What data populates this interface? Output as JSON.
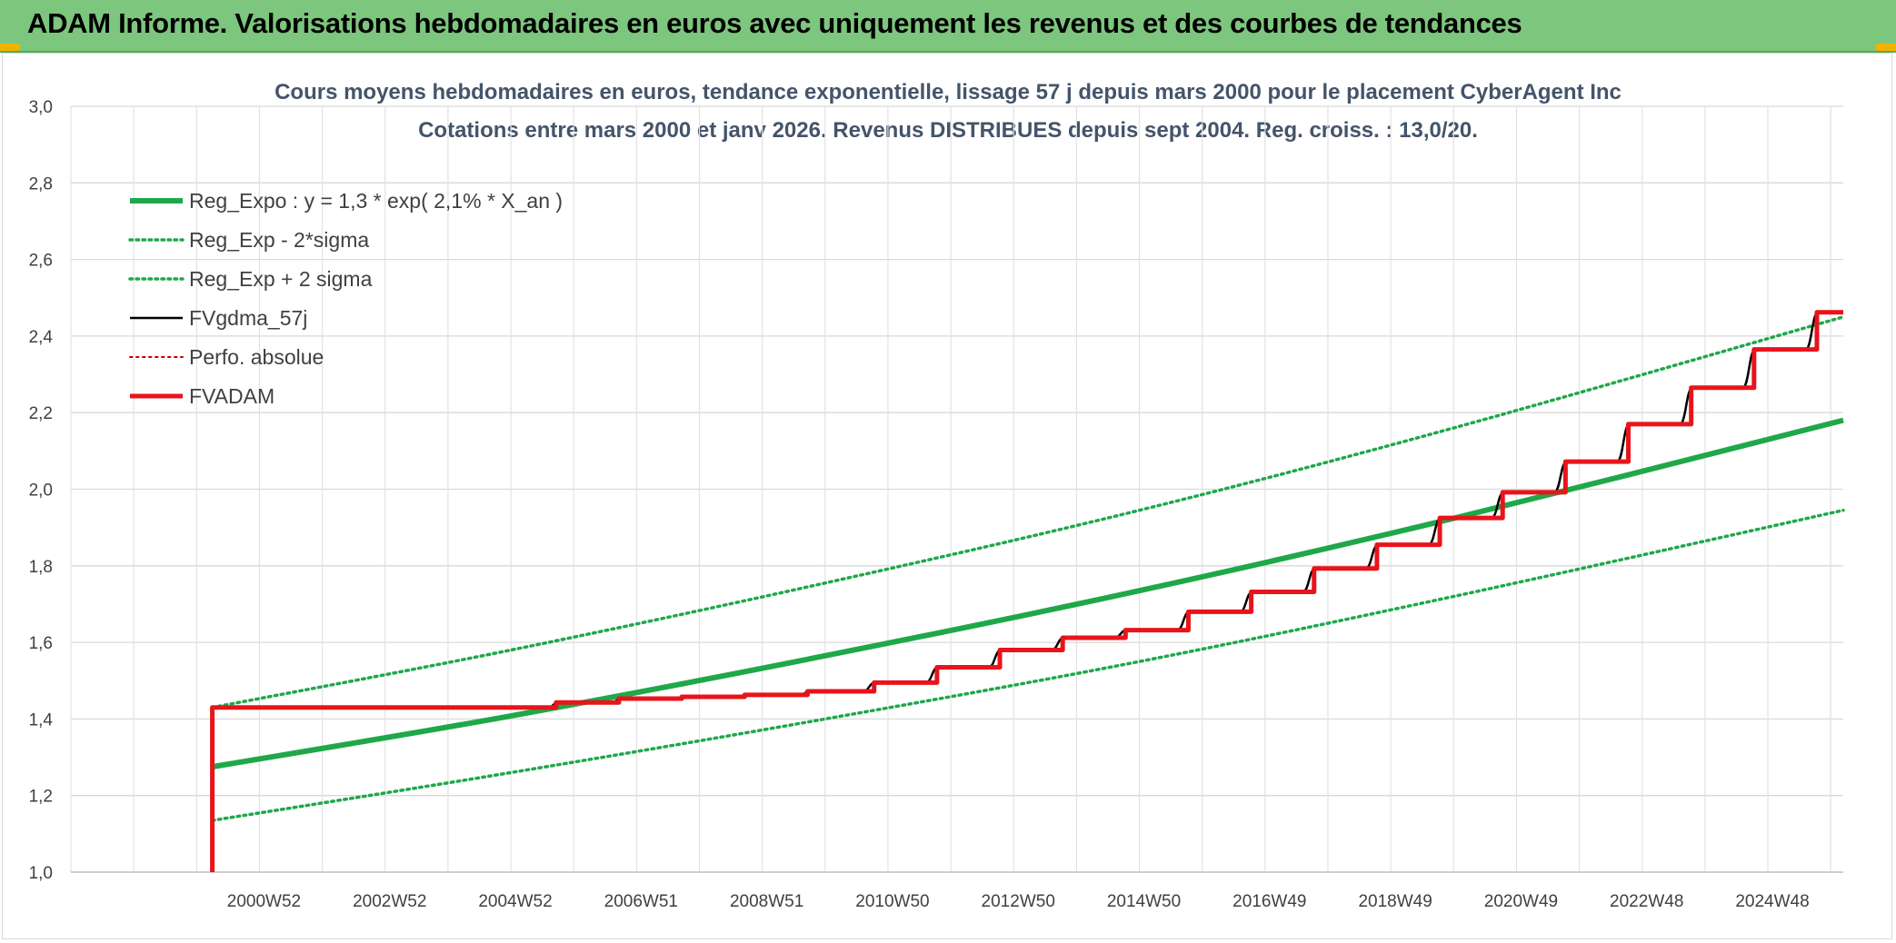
{
  "header": {
    "title": "ADAM Informe. Valorisations hebdomadaires en euros avec uniquement les revenus et des courbes de tendances",
    "bg_color": "#7dc67d",
    "corner_color": "#f0b400"
  },
  "chart_data": {
    "type": "line",
    "title": "Cours moyens hebdomadaires en euros, tendance exponentielle, lissage 57 j depuis mars 2000 pour le placement CyberAgent Inc",
    "subtitle": "Cotations entre mars 2000 et janv 2026. Revenus DISTRIBUES depuis sept 2004. Reg. croiss. : 13,0/20.",
    "xlabel": "",
    "ylabel": "",
    "ylim": [
      1.0,
      3.0
    ],
    "xlim": [
      1998.0,
      2026.2
    ],
    "y_ticks": [
      "1,0",
      "1,2",
      "1,4",
      "1,6",
      "1,8",
      "2,0",
      "2,2",
      "2,4",
      "2,6",
      "2,8",
      "3,0"
    ],
    "x_ticks": [
      {
        "label": "2000W52",
        "x": 2001.0
      },
      {
        "label": "2002W52",
        "x": 2003.0
      },
      {
        "label": "2004W52",
        "x": 2005.0
      },
      {
        "label": "2006W51",
        "x": 2007.0
      },
      {
        "label": "2008W51",
        "x": 2009.0
      },
      {
        "label": "2010W50",
        "x": 2011.0
      },
      {
        "label": "2012W50",
        "x": 2013.0
      },
      {
        "label": "2014W50",
        "x": 2015.0
      },
      {
        "label": "2016W49",
        "x": 2017.0
      },
      {
        "label": "2018W49",
        "x": 2019.0
      },
      {
        "label": "2020W49",
        "x": 2021.0
      },
      {
        "label": "2022W48",
        "x": 2023.0
      },
      {
        "label": "2024W48",
        "x": 2025.0
      }
    ],
    "grid": true,
    "legend_position": "top-left",
    "series": [
      {
        "name": "Reg_Expo : y = 1,3 * exp( 2,1% *  X_an )",
        "color": "#1fa84a",
        "style": "solid",
        "width": 6,
        "x": [
          2000.25,
          2005.0,
          2010.0,
          2015.0,
          2020.0,
          2026.2
        ],
        "y": [
          1.275,
          1.408,
          1.565,
          1.735,
          1.924,
          2.18
        ]
      },
      {
        "name": "Reg_Exp - 2*sigma",
        "color": "#1fa84a",
        "style": "dotted",
        "width": 3.5,
        "x": [
          2000.25,
          2005.0,
          2010.0,
          2015.0,
          2020.0,
          2026.2
        ],
        "y": [
          1.135,
          1.26,
          1.4,
          1.55,
          1.72,
          1.945
        ]
      },
      {
        "name": "Reg_Exp + 2 sigma",
        "color": "#1fa84a",
        "style": "dotted",
        "width": 3.5,
        "x": [
          2000.25,
          2005.0,
          2010.0,
          2015.0,
          2020.0,
          2026.2
        ],
        "y": [
          1.43,
          1.58,
          1.755,
          1.945,
          2.16,
          2.45
        ]
      },
      {
        "name": "FVgdma_57j",
        "color": "#000000",
        "style": "solid",
        "width": 2.5,
        "x": [
          2000.25,
          2000.25,
          2005.6,
          2005.75,
          2006.6,
          2006.75,
          2007.6,
          2007.75,
          2008.6,
          2008.75,
          2009.6,
          2009.75,
          2010.6,
          2010.8,
          2011.6,
          2011.8,
          2012.6,
          2012.8,
          2013.6,
          2013.8,
          2014.6,
          2014.8,
          2015.6,
          2015.8,
          2016.6,
          2016.8,
          2017.6,
          2017.8,
          2018.6,
          2018.8,
          2019.6,
          2019.8,
          2020.6,
          2020.8,
          2021.6,
          2021.8,
          2022.6,
          2022.8,
          2023.6,
          2023.8,
          2024.6,
          2024.8,
          2025.6,
          2025.8
        ],
        "y": [
          1.0,
          1.43,
          1.43,
          1.443,
          1.443,
          1.453,
          1.453,
          1.458,
          1.458,
          1.463,
          1.463,
          1.472,
          1.472,
          1.495,
          1.495,
          1.535,
          1.535,
          1.58,
          1.58,
          1.612,
          1.612,
          1.632,
          1.632,
          1.68,
          1.68,
          1.732,
          1.732,
          1.793,
          1.793,
          1.855,
          1.855,
          1.925,
          1.925,
          1.992,
          1.992,
          2.072,
          2.072,
          2.17,
          2.17,
          2.265,
          2.265,
          2.365,
          2.365,
          2.462
        ]
      },
      {
        "name": "Perfo. absolue",
        "color": "#c00000",
        "style": "dotted",
        "width": 2,
        "x": [],
        "y": []
      },
      {
        "name": "FVADAM",
        "color": "#e8141b",
        "style": "step",
        "width": 5,
        "x": [
          2000.25,
          2000.25,
          2005.72,
          2006.72,
          2007.72,
          2008.72,
          2009.72,
          2010.78,
          2011.78,
          2012.78,
          2013.78,
          2014.78,
          2015.78,
          2016.78,
          2017.78,
          2018.78,
          2019.78,
          2020.78,
          2021.78,
          2022.78,
          2023.78,
          2024.78,
          2025.78,
          2026.2
        ],
        "y": [
          1.0,
          1.43,
          1.443,
          1.453,
          1.458,
          1.463,
          1.472,
          1.495,
          1.535,
          1.58,
          1.612,
          1.632,
          1.68,
          1.732,
          1.793,
          1.855,
          1.925,
          1.992,
          2.072,
          2.17,
          2.265,
          2.365,
          2.462,
          2.462
        ]
      }
    ]
  }
}
